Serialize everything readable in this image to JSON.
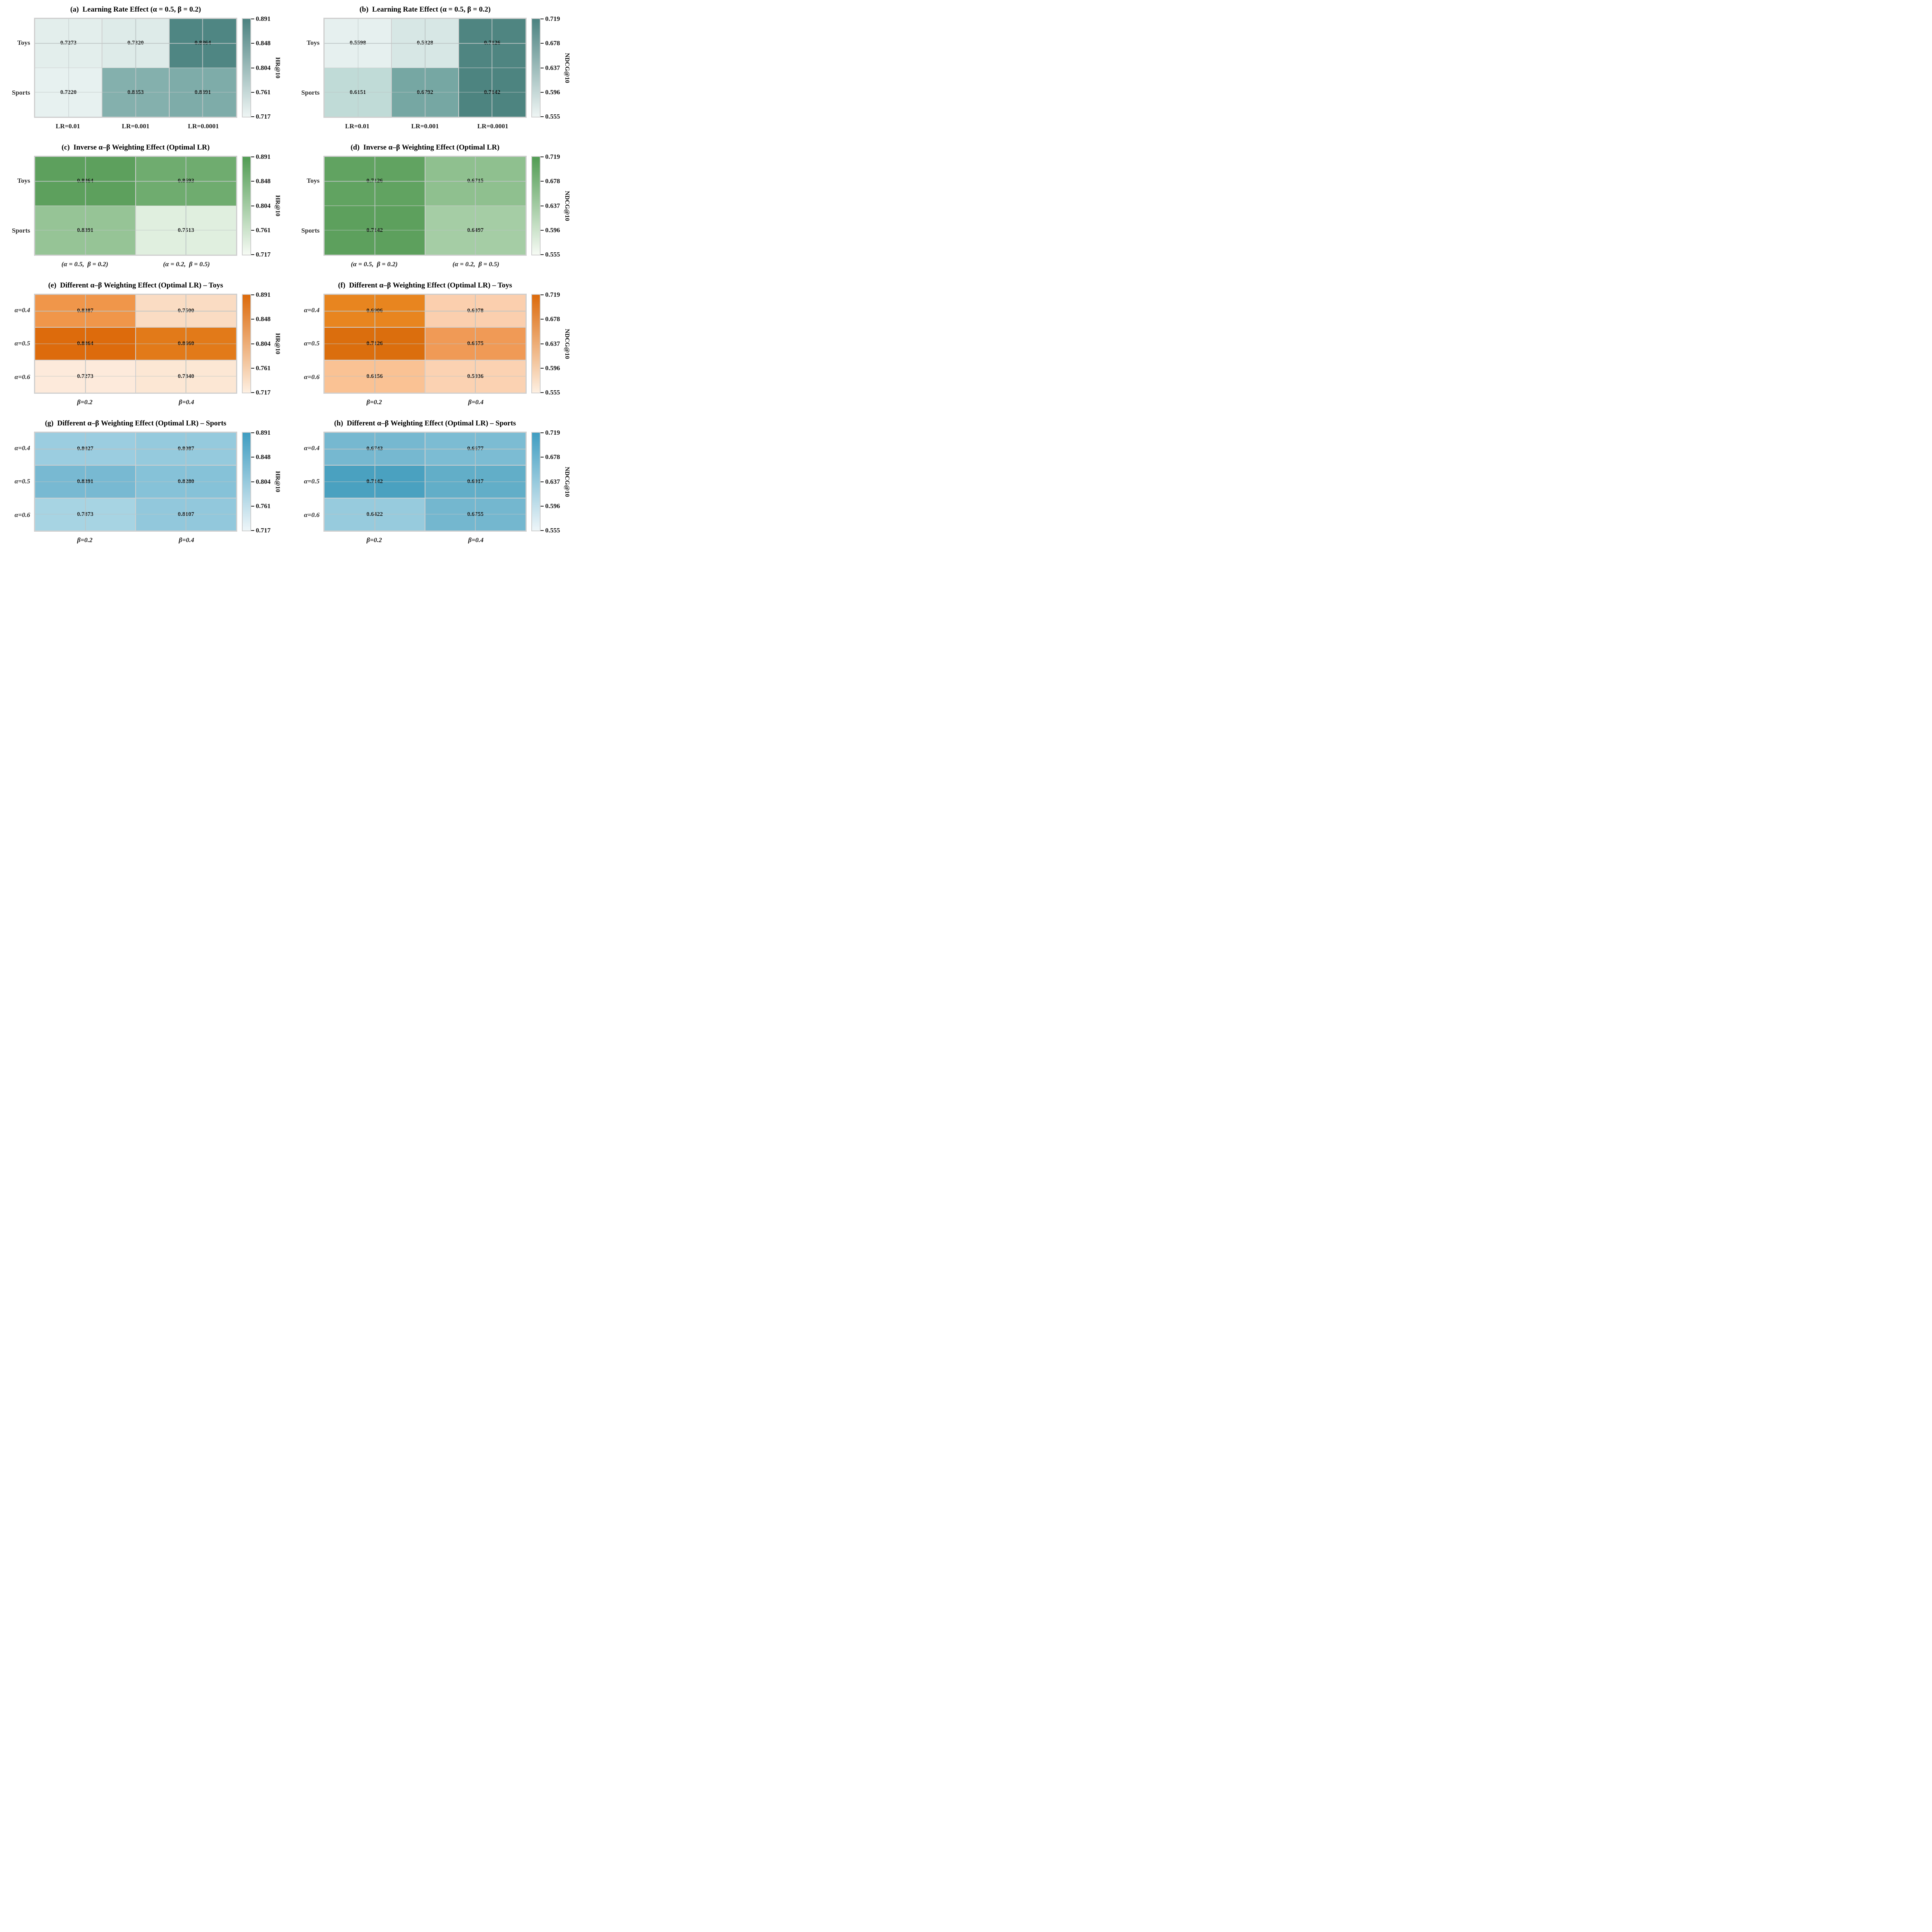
{
  "figure": {
    "description": "Grid of eight annotated heatmaps showing learning-rate and alpha-beta weighting ablation results on Toys and Sports datasets",
    "metric_left_column": "HR@10",
    "metric_right_column": "NDCG@10"
  },
  "chart_data": {
    "type": "heatmap",
    "layout": "4 rows x 2 columns of heatmap panels, each with a vertical colorbar on the right",
    "colormaps": {
      "teal": {
        "low": "#eef5f4",
        "high": "#4b8280"
      },
      "green": {
        "low": "#f6fbf4",
        "high": "#519c53"
      },
      "orange": {
        "low": "#fef0e2",
        "high": "#dc6a0b"
      },
      "blue": {
        "low": "#eef6f9",
        "high": "#3f9dc1"
      }
    },
    "hr_range": [
      0.717,
      0.891
    ],
    "ndcg_range": [
      0.555,
      0.719
    ],
    "panels": [
      {
        "id": "a",
        "title": "(a)  Learning Rate Effect (α = 0.5, β = 0.2)",
        "ylabels": [
          "Toys",
          "Sports"
        ],
        "xlabels": [
          "LR=0.01",
          "LR=0.001",
          "LR=0.0001"
        ],
        "values": [
          [
            0.7273,
            0.732,
            0.8864
          ],
          [
            0.722,
            0.8353,
            0.8391
          ]
        ],
        "value_labels": [
          [
            "0.7273",
            "0.7320",
            "0.8864"
          ],
          [
            "0.7220",
            "0.8353",
            "0.8391"
          ]
        ],
        "cell_colors": [
          [
            "#e3eeec",
            "#deebe9",
            "#4f8683"
          ],
          [
            "#e7f1f0",
            "#84b0ad",
            "#7eaca9"
          ]
        ],
        "colorbar": {
          "label": "HR@10",
          "ticks": [
            "0.891",
            "0.848",
            "0.804",
            "0.761",
            "0.717"
          ],
          "gradient_top": "#4b8280",
          "gradient_bottom": "#eef5f4"
        }
      },
      {
        "id": "b",
        "title": "(b)  Learning Rate Effect (α = 0.5, β = 0.2)",
        "ylabels": [
          "Toys",
          "Sports"
        ],
        "xlabels": [
          "LR=0.01",
          "LR=0.001",
          "LR=0.0001"
        ],
        "values": [
          [
            0.5598,
            0.5828,
            0.7126
          ],
          [
            0.6151,
            0.6792,
            0.7142
          ]
        ],
        "value_labels": [
          [
            "0.5598",
            "0.5828",
            "0.7126"
          ],
          [
            "0.6151",
            "0.6792",
            "0.7142"
          ]
        ],
        "cell_colors": [
          [
            "#e6f0ef",
            "#d7e7e5",
            "#4f8581"
          ],
          [
            "#c0dbd7",
            "#76a7a3",
            "#4d8480"
          ]
        ],
        "colorbar": {
          "label": "NDCG@10",
          "ticks": [
            "0.719",
            "0.678",
            "0.637",
            "0.596",
            "0.555"
          ],
          "gradient_top": "#4b8280",
          "gradient_bottom": "#eef5f4"
        }
      },
      {
        "id": "c",
        "title": "(c)  Inverse α–β Weighting Effect (Optimal LR)",
        "ylabels": [
          "Toys",
          "Sports"
        ],
        "xlabels": [
          "(α = 0.5,  β = 0.2)",
          "(α = 0.2,  β = 0.5)"
        ],
        "values": [
          [
            0.8864,
            0.8693
          ],
          [
            0.8391,
            0.7513
          ]
        ],
        "value_labels": [
          [
            "0.8864",
            "0.8693"
          ],
          [
            "0.8391",
            "0.7513"
          ]
        ],
        "cell_colors": [
          [
            "#5da05d",
            "#6fac6f"
          ],
          [
            "#96c496",
            "#e0efdf"
          ]
        ],
        "colorbar": {
          "label": "HR@10",
          "ticks": [
            "0.891",
            "0.848",
            "0.804",
            "0.761",
            "0.717"
          ],
          "gradient_top": "#519c53",
          "gradient_bottom": "#f6fbf4"
        }
      },
      {
        "id": "d",
        "title": "(d)  Inverse α–β Weighting Effect (Optimal LR)",
        "ylabels": [
          "Toys",
          "Sports"
        ],
        "xlabels": [
          "(α = 0.5,  β = 0.2)",
          "(α = 0.2,  β = 0.5)"
        ],
        "values": [
          [
            0.7126,
            0.6715
          ],
          [
            0.7142,
            0.6497
          ]
        ],
        "value_labels": [
          [
            "0.7126",
            "0.6715"
          ],
          [
            "0.7142",
            "0.6497"
          ]
        ],
        "cell_colors": [
          [
            "#61a361",
            "#8fc08f"
          ],
          [
            "#5da05d",
            "#a5cda5"
          ]
        ],
        "colorbar": {
          "label": "NDCG@10",
          "ticks": [
            "0.719",
            "0.678",
            "0.637",
            "0.596",
            "0.555"
          ],
          "gradient_top": "#519c53",
          "gradient_bottom": "#f6fbf4"
        }
      },
      {
        "id": "e",
        "title": "(e)  Different α–β Weighting Effect (Optimal LR) – Toys",
        "ylabels": [
          "α=0.4",
          "α=0.5",
          "α=0.6"
        ],
        "xlabels": [
          "β=0.2",
          "β=0.4"
        ],
        "values": [
          [
            0.8387,
            0.75
          ],
          [
            0.8864,
            0.866
          ],
          [
            0.7273,
            0.734
          ]
        ],
        "value_labels": [
          [
            "0.8387",
            "0.7500"
          ],
          [
            "0.8864",
            "0.8660"
          ],
          [
            "0.7273",
            "0.7340"
          ]
        ],
        "cell_colors": [
          [
            "#f0964a",
            "#fadcc3"
          ],
          [
            "#dd6b0c",
            "#e27a19"
          ],
          [
            "#fdeadb",
            "#fce7d4"
          ]
        ],
        "colorbar": {
          "label": "HR@10",
          "ticks": [
            "0.891",
            "0.848",
            "0.804",
            "0.761",
            "0.717"
          ],
          "gradient_top": "#dc6a0b",
          "gradient_bottom": "#fef0e2"
        }
      },
      {
        "id": "f",
        "title": "(f)  Different α–β Weighting Effect (Optimal LR) – Toys",
        "ylabels": [
          "α=0.4",
          "α=0.5",
          "α=0.6"
        ],
        "xlabels": [
          "β=0.2",
          "β=0.4"
        ],
        "values": [
          [
            0.6906,
            0.6078
          ],
          [
            0.7126,
            0.6575
          ],
          [
            0.6156,
            0.5936
          ]
        ],
        "value_labels": [
          [
            "0.6906",
            "0.6078"
          ],
          [
            "0.7126",
            "0.6575"
          ],
          [
            "0.6156",
            "0.5936"
          ]
        ],
        "cell_colors": [
          [
            "#e8851f",
            "#fbcfae"
          ],
          [
            "#db6e0d",
            "#f09a56"
          ],
          [
            "#fac294",
            "#fbd2b2"
          ]
        ],
        "colorbar": {
          "label": "NDCG@10",
          "ticks": [
            "0.719",
            "0.678",
            "0.637",
            "0.596",
            "0.555"
          ],
          "gradient_top": "#dc6a0b",
          "gradient_bottom": "#fef0e2"
        }
      },
      {
        "id": "g",
        "title": "(g)  Different α–β Weighting Effect (Optimal LR) – Sports",
        "ylabels": [
          "α=0.4",
          "α=0.5",
          "α=0.6"
        ],
        "xlabels": [
          "β=0.2",
          "β=0.4"
        ],
        "values": [
          [
            0.8027,
            0.8087
          ],
          [
            0.8391,
            0.828
          ],
          [
            0.7873,
            0.8107
          ]
        ],
        "value_labels": [
          [
            "0.8027",
            "0.8087"
          ],
          [
            "0.8391",
            "0.8280"
          ],
          [
            "0.7873",
            "0.8107"
          ]
        ],
        "cell_colors": [
          [
            "#9bcde0",
            "#95cadd"
          ],
          [
            "#78b9d2",
            "#86c2d8"
          ],
          [
            "#a7d4e3",
            "#92c8dc"
          ]
        ],
        "colorbar": {
          "label": "HR@10",
          "ticks": [
            "0.891",
            "0.848",
            "0.804",
            "0.761",
            "0.717"
          ],
          "gradient_top": "#3f9dc1",
          "gradient_bottom": "#eef6f9"
        }
      },
      {
        "id": "h",
        "title": "(h)  Different α–β Weighting Effect (Optimal LR) – Sports",
        "ylabels": [
          "α=0.4",
          "α=0.5",
          "α=0.6"
        ],
        "xlabels": [
          "β=0.2",
          "β=0.4"
        ],
        "values": [
          [
            0.6743,
            0.6677
          ],
          [
            0.7142,
            0.6917
          ],
          [
            0.6422,
            0.6755
          ]
        ],
        "value_labels": [
          [
            "0.6743",
            "0.6677"
          ],
          [
            "0.7142",
            "0.6917"
          ],
          [
            "0.6422",
            "0.6755"
          ]
        ],
        "cell_colors": [
          [
            "#76b8d0",
            "#7cbcd3"
          ],
          [
            "#4aa1c0",
            "#62aec8"
          ],
          [
            "#97cbdd",
            "#74b7cf"
          ]
        ],
        "colorbar": {
          "label": "NDCG@10",
          "ticks": [
            "0.719",
            "0.678",
            "0.637",
            "0.596",
            "0.555"
          ],
          "gradient_top": "#3f9dc1",
          "gradient_bottom": "#eef6f9"
        }
      }
    ]
  }
}
